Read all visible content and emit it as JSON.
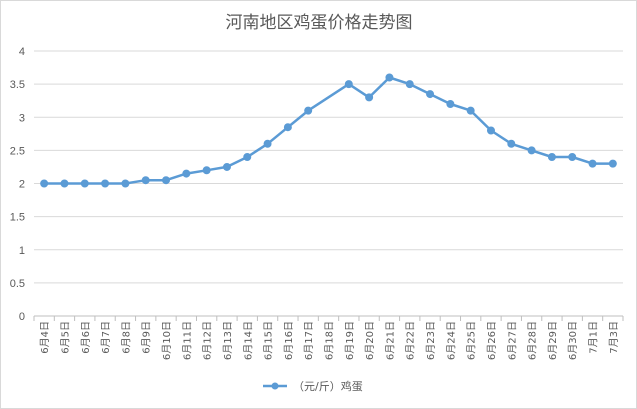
{
  "chart_data": {
    "type": "line",
    "title": "河南地区鸡蛋价格走势图",
    "xlabel": "",
    "ylabel": "",
    "ylim": [
      0,
      4
    ],
    "yticks": [
      0,
      0.5,
      1,
      1.5,
      2,
      2.5,
      3,
      3.5,
      4
    ],
    "ytick_labels": [
      "0",
      "0.5",
      "1",
      "1.5",
      "2",
      "2.5",
      "3",
      "3.5",
      "4"
    ],
    "grid": true,
    "legend_position": "bottom",
    "categories": [
      "6月4日",
      "6月5日",
      "6月6日",
      "6月7日",
      "6月8日",
      "6月9日",
      "6月10日",
      "6月11日",
      "6月12日",
      "6月13日",
      "6月14日",
      "6月15日",
      "6月16日",
      "6月17日",
      "6月18日",
      "6月19日",
      "6月20日",
      "6月21日",
      "6月22日",
      "6月23日",
      "6月24日",
      "6月25日",
      "6月26日",
      "6月27日",
      "6月28日",
      "6月29日",
      "6月30日",
      "7月1日",
      "7月3日"
    ],
    "series": [
      {
        "name": "（元/斤）鸡蛋",
        "color": "#5b9bd5",
        "values": [
          2.0,
          2.0,
          2.0,
          2.0,
          2.0,
          2.05,
          2.05,
          2.15,
          2.2,
          2.25,
          2.4,
          2.6,
          2.85,
          3.1,
          null,
          3.5,
          3.3,
          3.6,
          3.5,
          3.35,
          3.2,
          3.1,
          2.8,
          2.6,
          2.5,
          2.4,
          2.4,
          2.3,
          2.3
        ]
      }
    ]
  }
}
